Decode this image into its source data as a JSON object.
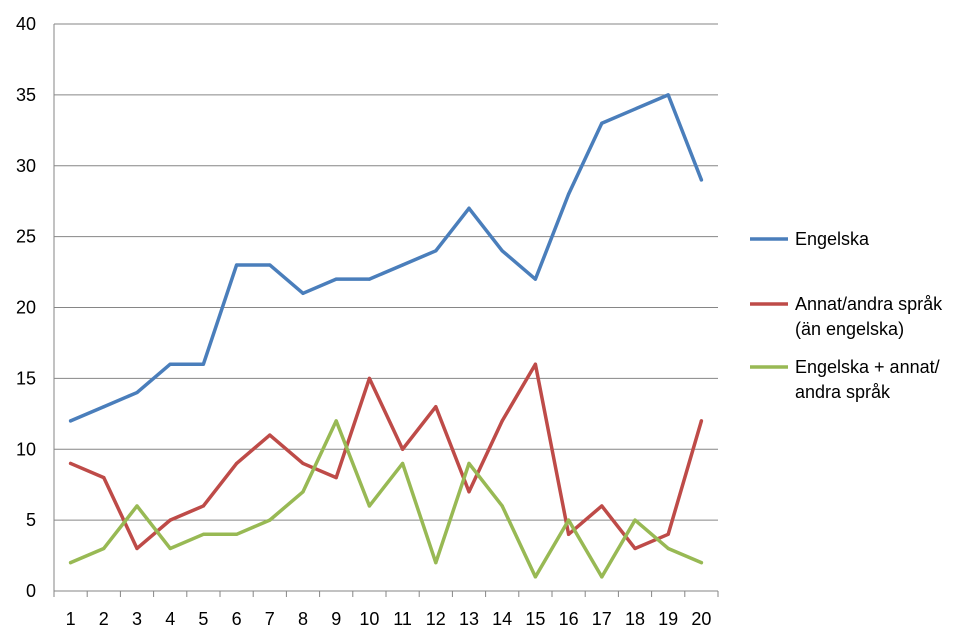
{
  "chart_data": {
    "type": "line",
    "x": [
      1,
      2,
      3,
      4,
      5,
      6,
      7,
      8,
      9,
      10,
      11,
      12,
      13,
      14,
      15,
      16,
      17,
      18,
      19,
      20
    ],
    "ylim": [
      0,
      40
    ],
    "yticks": [
      0,
      5,
      10,
      15,
      20,
      25,
      30,
      35,
      40
    ],
    "grid": true,
    "legend_position": "right",
    "series": [
      {
        "name": "Engelska",
        "color": "#4A7EBB",
        "values": [
          12,
          13,
          14,
          16,
          16,
          23,
          23,
          21,
          22,
          22,
          23,
          24,
          27,
          24,
          22,
          28,
          33,
          34,
          35,
          29
        ]
      },
      {
        "name": "Annat/andra språk (än engelska)",
        "legend_lines": [
          "Annat/andra språk",
          "(än engelska)"
        ],
        "color": "#BE4B48",
        "values": [
          9,
          8,
          3,
          5,
          6,
          9,
          11,
          9,
          8,
          15,
          10,
          13,
          7,
          12,
          16,
          4,
          6,
          3,
          4,
          12
        ]
      },
      {
        "name": "Engelska + annat/ andra språk",
        "legend_lines": [
          "Engelska + annat/",
          "andra språk"
        ],
        "color": "#98B954",
        "values": [
          2,
          3,
          6,
          3,
          4,
          4,
          5,
          7,
          12,
          6,
          9,
          2,
          9,
          6,
          1,
          5,
          1,
          5,
          3,
          2
        ]
      }
    ]
  }
}
